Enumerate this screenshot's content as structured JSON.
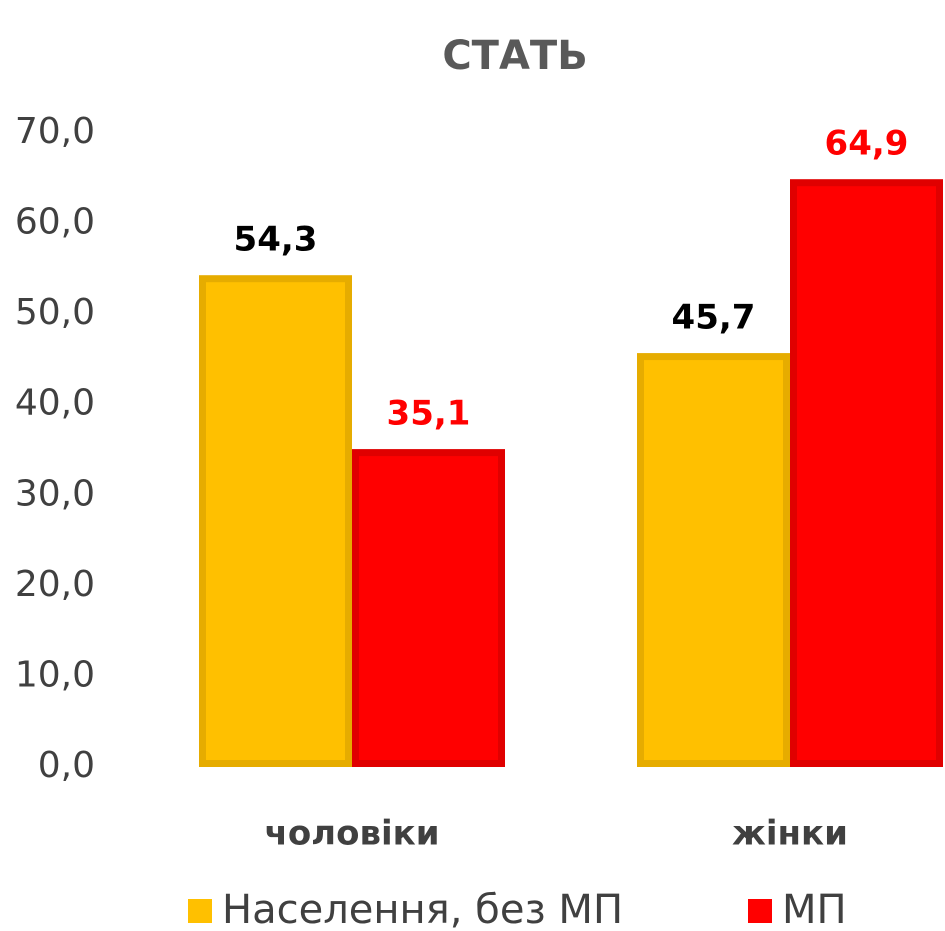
{
  "chart_data": {
    "type": "bar",
    "title": "СТАТЬ",
    "categories": [
      "чоловіки",
      "жінки"
    ],
    "series": [
      {
        "name": "Населення, без МП",
        "color": "#FFC000",
        "stroke": "#E6AC00",
        "label_color": "#000000",
        "values": [
          54.3,
          45.7
        ],
        "value_labels": [
          "54,3",
          "45,7"
        ]
      },
      {
        "name": "МП",
        "color": "#FF0000",
        "stroke": "#E00000",
        "label_color": "#FF0000",
        "values": [
          35.1,
          64.9
        ],
        "value_labels": [
          "35,1",
          "64,9"
        ]
      }
    ],
    "ylim": [
      0,
      70
    ],
    "yticks": [
      {
        "value": 0,
        "label": "0,0"
      },
      {
        "value": 10,
        "label": "10,0"
      },
      {
        "value": 20,
        "label": "20,0"
      },
      {
        "value": 30,
        "label": "30,0"
      },
      {
        "value": 40,
        "label": "40,0"
      },
      {
        "value": 50,
        "label": "50,0"
      },
      {
        "value": 60,
        "label": "60,0"
      },
      {
        "value": 70,
        "label": "70,0"
      }
    ],
    "grid": false,
    "legend": "bottom"
  }
}
